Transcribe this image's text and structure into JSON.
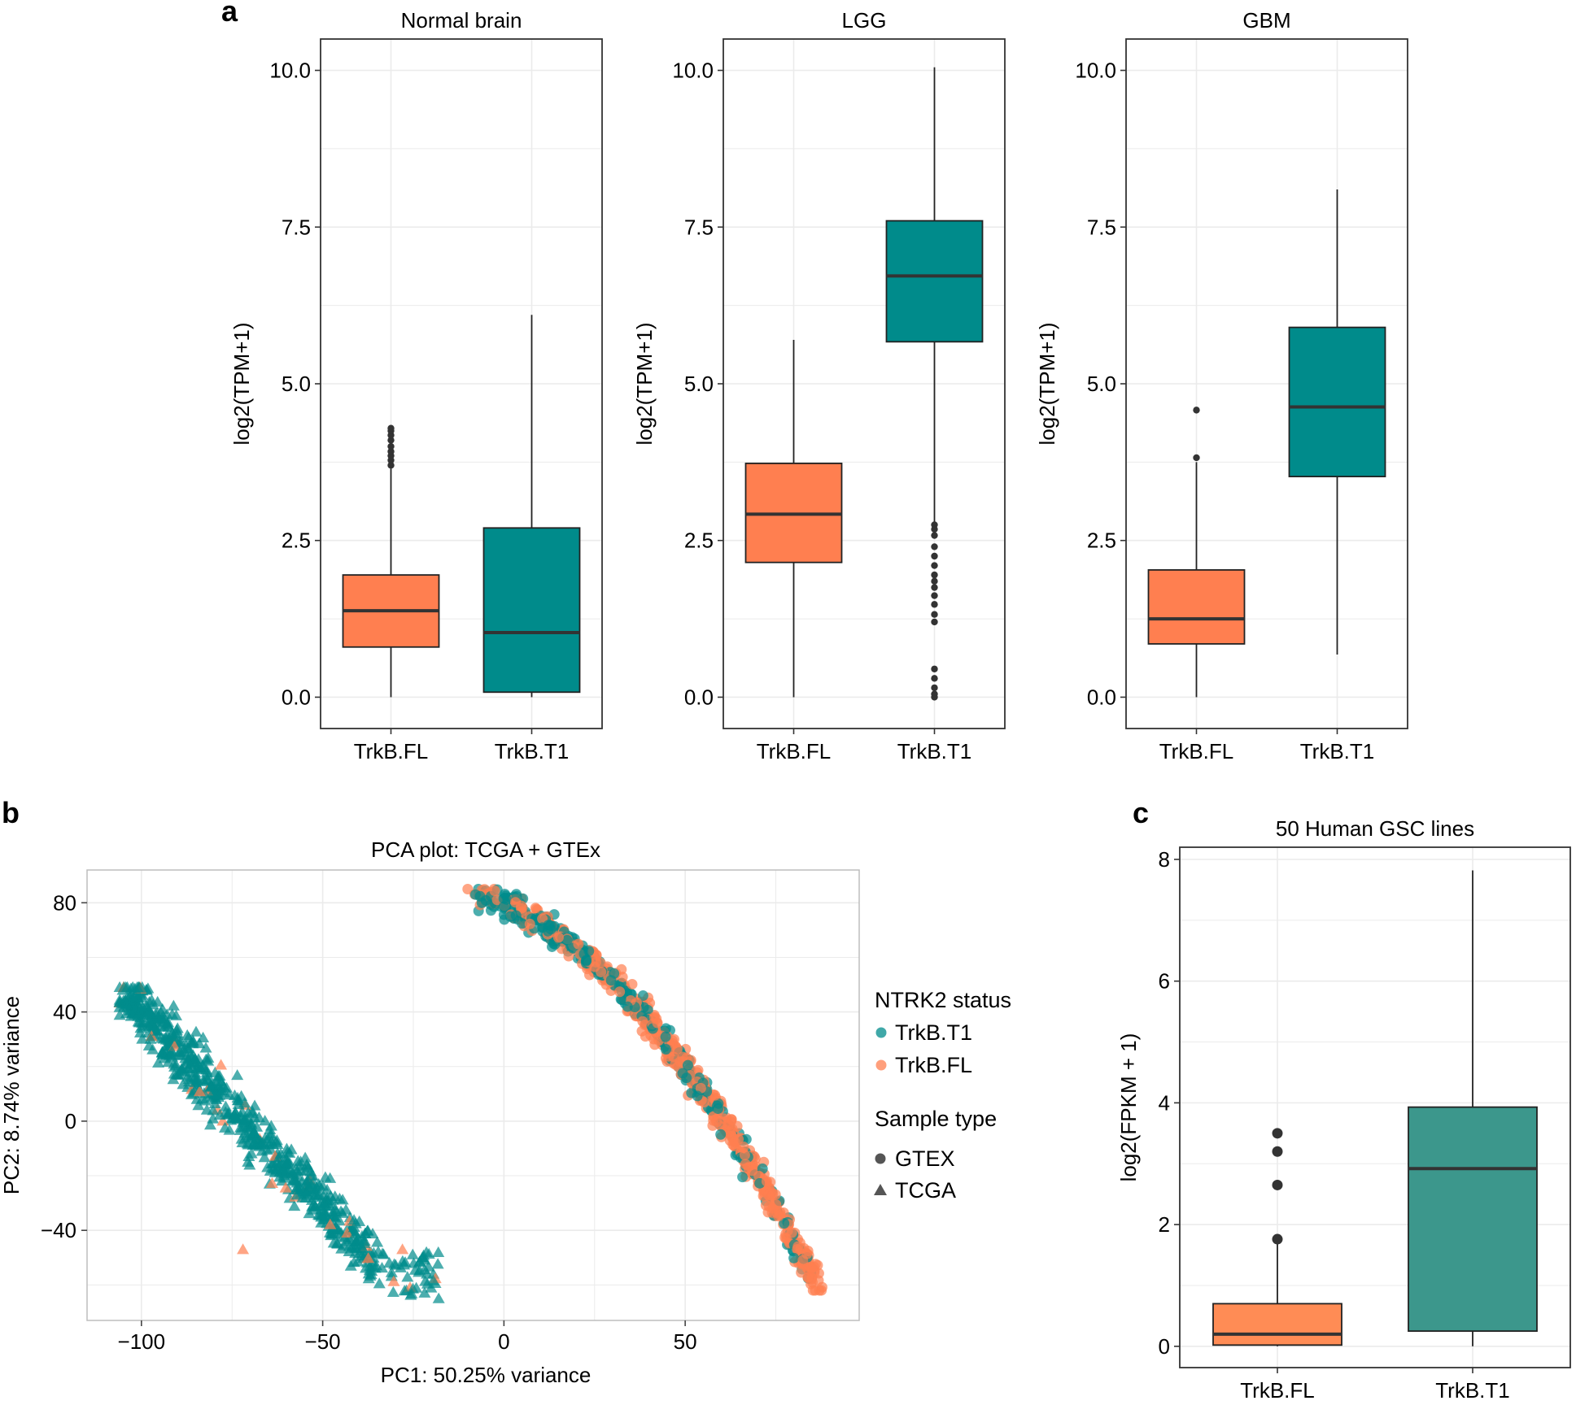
{
  "colors": {
    "full_length": "#FF7F50",
    "truncated": "#008B8B",
    "gsc_full_length": "#FF8C55",
    "gsc_truncated": "#3C978C",
    "median": "#333333",
    "frame": "#333333",
    "grid": "#EBEBEB",
    "outlier": "#333333",
    "legend_shape": "#555555"
  },
  "chart_data": [
    {
      "id": "a",
      "panel_label": "a",
      "type": "box",
      "facets": [
        {
          "title": "Normal brain",
          "ylabel": "log2(TPM+1)",
          "ylim": [
            -0.5,
            10.5
          ],
          "yticks": [
            0,
            2.5,
            5,
            7.5,
            10
          ],
          "yticklabels": [
            "0.0",
            "2.5",
            "5.0",
            "7.5",
            "10.0"
          ],
          "categories": [
            "TrkB.FL",
            "TrkB.T1"
          ],
          "boxes": [
            {
              "category": "TrkB.FL",
              "min": 0.0,
              "q1": 0.8,
              "median": 1.38,
              "q3": 1.95,
              "max": 3.65,
              "outliers": [
                3.7,
                3.78,
                3.85,
                3.92,
                4.0,
                4.1,
                4.18,
                4.25,
                4.29
              ]
            },
            {
              "category": "TrkB.T1",
              "min": 0.0,
              "q1": 0.08,
              "median": 1.03,
              "q3": 2.7,
              "max": 6.1,
              "outliers": []
            }
          ]
        },
        {
          "title": "LGG",
          "ylabel": "log2(TPM+1)",
          "ylim": [
            -0.5,
            10.5
          ],
          "yticks": [
            0,
            2.5,
            5,
            7.5,
            10
          ],
          "yticklabels": [
            "0.0",
            "2.5",
            "5.0",
            "7.5",
            "10.0"
          ],
          "categories": [
            "TrkB.FL",
            "TrkB.T1"
          ],
          "boxes": [
            {
              "category": "TrkB.FL",
              "min": 0.0,
              "q1": 2.15,
              "median": 2.92,
              "q3": 3.73,
              "max": 5.7,
              "outliers": []
            },
            {
              "category": "TrkB.T1",
              "min": 2.8,
              "q1": 5.67,
              "median": 6.72,
              "q3": 7.6,
              "max": 10.05,
              "outliers": [
                2.75,
                2.68,
                2.58,
                2.4,
                2.25,
                2.1,
                1.95,
                1.85,
                1.75,
                1.62,
                1.48,
                1.32,
                1.2,
                0.45,
                0.3,
                0.15,
                0.05,
                0.0
              ]
            }
          ]
        },
        {
          "title": "GBM",
          "ylabel": "log2(TPM+1)",
          "ylim": [
            -0.5,
            10.5
          ],
          "yticks": [
            0,
            2.5,
            5,
            7.5,
            10
          ],
          "yticklabels": [
            "0.0",
            "2.5",
            "5.0",
            "7.5",
            "10.0"
          ],
          "categories": [
            "TrkB.FL",
            "TrkB.T1"
          ],
          "boxes": [
            {
              "category": "TrkB.FL",
              "min": 0.0,
              "q1": 0.85,
              "median": 1.25,
              "q3": 2.03,
              "max": 3.75,
              "outliers": [
                3.82,
                4.58
              ]
            },
            {
              "category": "TrkB.T1",
              "min": 0.68,
              "q1": 3.52,
              "median": 4.63,
              "q3": 5.9,
              "max": 8.1,
              "outliers": []
            }
          ]
        }
      ]
    },
    {
      "id": "b",
      "panel_label": "b",
      "type": "scatter",
      "title": "PCA plot: TCGA + GTEx",
      "xlabel": "PC1: 50.25% variance",
      "ylabel": "PC2: 8.74% variance",
      "xlim": [
        -115,
        98
      ],
      "ylim": [
        -73,
        92
      ],
      "xticks": [
        -100,
        -50,
        0,
        50
      ],
      "xticklabels": [
        "−100",
        "−50",
        "0",
        "50"
      ],
      "yticks": [
        -40,
        0,
        40,
        80
      ],
      "yticklabels": [
        "−40",
        "0",
        "40",
        "80"
      ],
      "legend": {
        "position": "right",
        "color_title": "NTRK2 status",
        "color_items": [
          "TrkB.T1",
          "TrkB.FL"
        ],
        "shape_title": "Sample type",
        "shape_items": [
          "GTEX",
          "TCGA"
        ]
      },
      "clusters": [
        {
          "sample_type": "GTEX",
          "shape": "circle",
          "note": "diagonal band from (-10, 85) to (88, -62)",
          "pc1_range": [
            -10,
            88
          ],
          "pc2_range": [
            -62,
            85
          ],
          "series": [
            "TrkB.T1",
            "TrkB.FL"
          ]
        },
        {
          "sample_type": "TCGA",
          "shape": "triangle",
          "note": "band from (-105, 48) to (-18, -65), mostly TrkB.T1",
          "pc1_range": [
            -105,
            -18
          ],
          "pc2_range": [
            -65,
            48
          ],
          "series": [
            "TrkB.T1",
            "TrkB.FL"
          ]
        }
      ]
    },
    {
      "id": "c",
      "panel_label": "c",
      "type": "box",
      "title": "50 Human GSC lines",
      "ylabel": "log2(FPKM + 1)",
      "ylim": [
        -0.35,
        8.2
      ],
      "yticks": [
        0,
        2,
        4,
        6,
        8
      ],
      "yticklabels": [
        "0",
        "2",
        "4",
        "6",
        "8"
      ],
      "categories": [
        "TrkB.FL",
        "TrkB.T1"
      ],
      "boxes": [
        {
          "category": "TrkB.FL",
          "min": 0.0,
          "q1": 0.02,
          "median": 0.2,
          "q3": 0.7,
          "max": 1.68,
          "outliers": [
            1.76,
            2.65,
            3.2,
            3.5
          ]
        },
        {
          "category": "TrkB.T1",
          "min": 0.0,
          "q1": 0.25,
          "median": 2.92,
          "q3": 3.93,
          "max": 7.82,
          "outliers": []
        }
      ]
    }
  ]
}
